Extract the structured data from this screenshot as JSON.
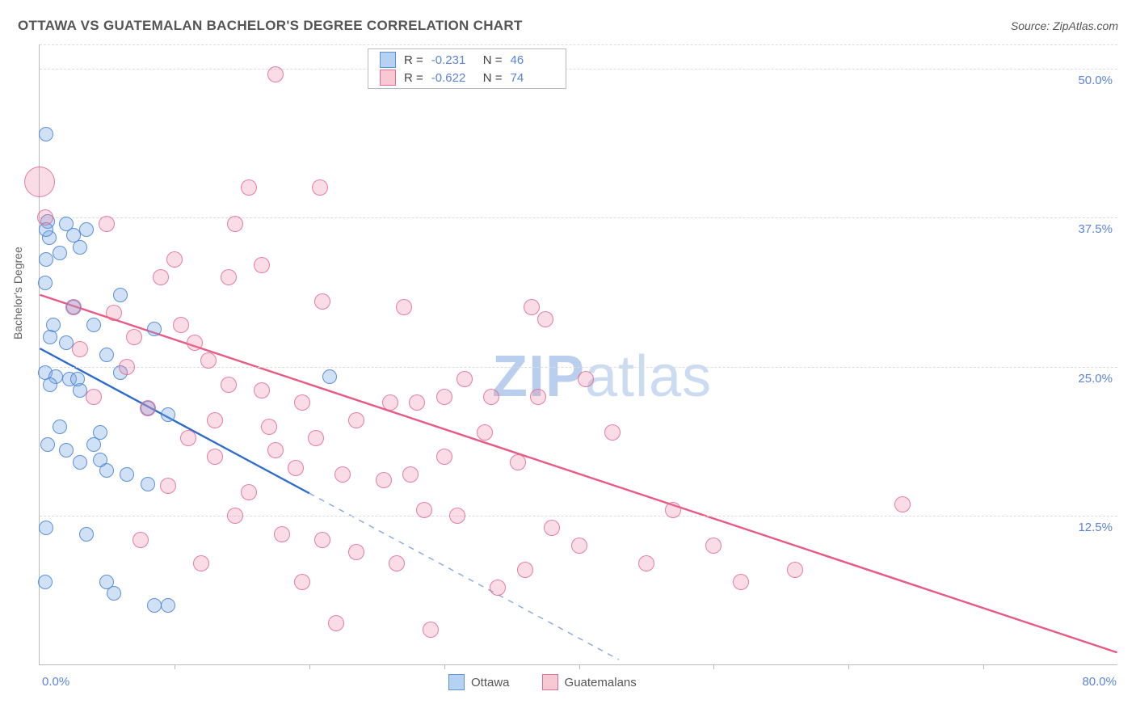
{
  "title": "OTTAWA VS GUATEMALAN BACHELOR'S DEGREE CORRELATION CHART",
  "source": "Source: ZipAtlas.com",
  "watermark_bold": "ZIP",
  "watermark_light": "atlas",
  "y_axis_label": "Bachelor's Degree",
  "chart": {
    "type": "scatter",
    "xlim": [
      0,
      80
    ],
    "ylim": [
      0,
      52
    ],
    "x_tick_step": 10,
    "x_label_min": "0.0%",
    "x_label_max": "80.0%",
    "y_gridlines": [
      12.5,
      25.0,
      37.5,
      50.0
    ],
    "y_labels": [
      "12.5%",
      "25.0%",
      "37.5%",
      "50.0%"
    ],
    "background_color": "#ffffff",
    "grid_color": "#dddddd",
    "axis_color": "#bbbbbb",
    "label_color": "#5b84d7",
    "series": [
      {
        "name": "Ottawa",
        "swatch_fill": "#b6d2f3",
        "swatch_stroke": "#5f91d6",
        "marker_fill": "rgba(120,170,230,0.35)",
        "marker_stroke": "rgba(70,130,210,0.85)",
        "marker_r": 8,
        "R": "-0.231",
        "N": "46",
        "trend": {
          "color": "#2e6bd0",
          "width": 2.4,
          "solid_to_x": 20,
          "x1": 0,
          "y1": 26.5,
          "x2": 43,
          "y2": 0.4
        },
        "points": [
          [
            0.5,
            44.5
          ],
          [
            0.6,
            37.2
          ],
          [
            0.7,
            35.8
          ],
          [
            0.5,
            36.5
          ],
          [
            2.0,
            37.0
          ],
          [
            2.5,
            36.0
          ],
          [
            3.5,
            36.5
          ],
          [
            0.5,
            34.0
          ],
          [
            0.4,
            32.0
          ],
          [
            2.5,
            30.0
          ],
          [
            1.0,
            28.5
          ],
          [
            0.8,
            27.5
          ],
          [
            2.0,
            27.0
          ],
          [
            4.0,
            28.5
          ],
          [
            6.0,
            31.0
          ],
          [
            8.5,
            28.2
          ],
          [
            0.4,
            24.5
          ],
          [
            1.2,
            24.2
          ],
          [
            2.2,
            24.0
          ],
          [
            0.8,
            23.5
          ],
          [
            3.0,
            23.0
          ],
          [
            8.0,
            21.5
          ],
          [
            9.5,
            21.0
          ],
          [
            4.5,
            19.5
          ],
          [
            1.5,
            20.0
          ],
          [
            0.6,
            18.5
          ],
          [
            2.0,
            18.0
          ],
          [
            3.0,
            17.0
          ],
          [
            4.5,
            17.2
          ],
          [
            5.0,
            16.3
          ],
          [
            6.5,
            16.0
          ],
          [
            8.0,
            15.2
          ],
          [
            0.5,
            11.5
          ],
          [
            3.5,
            11.0
          ],
          [
            0.4,
            7.0
          ],
          [
            5.0,
            7.0
          ],
          [
            5.5,
            6.0
          ],
          [
            8.5,
            5.0
          ],
          [
            9.5,
            5.0
          ],
          [
            1.5,
            34.5
          ],
          [
            3.0,
            35.0
          ],
          [
            5.0,
            26.0
          ],
          [
            4.0,
            18.5
          ],
          [
            6.0,
            24.5
          ],
          [
            2.8,
            24.0
          ],
          [
            21.5,
            24.2
          ]
        ]
      },
      {
        "name": "Guatemalans",
        "swatch_fill": "#f6c9d5",
        "swatch_stroke": "#e36f91",
        "marker_fill": "rgba(235,130,160,0.28)",
        "marker_stroke": "rgba(225,100,140,0.8)",
        "marker_r": 9,
        "R": "-0.622",
        "N": "74",
        "trend": {
          "color": "#e85a85",
          "width": 2.4,
          "solid_to_x": 80,
          "x1": 0,
          "y1": 31.0,
          "x2": 80,
          "y2": 1.0
        },
        "points": [
          [
            0.0,
            40.5,
            18
          ],
          [
            17.5,
            49.5
          ],
          [
            15.5,
            40.0
          ],
          [
            20.8,
            40.0
          ],
          [
            0.4,
            37.5
          ],
          [
            5.0,
            37.0
          ],
          [
            14.5,
            37.0
          ],
          [
            10.0,
            34.0
          ],
          [
            16.5,
            33.5
          ],
          [
            9.0,
            32.5
          ],
          [
            14.0,
            32.5
          ],
          [
            2.5,
            30.0
          ],
          [
            5.5,
            29.5
          ],
          [
            10.5,
            28.5
          ],
          [
            7.0,
            27.5
          ],
          [
            11.5,
            27.0
          ],
          [
            3.0,
            26.5
          ],
          [
            12.5,
            25.5
          ],
          [
            21.0,
            30.5
          ],
          [
            27.0,
            30.0
          ],
          [
            36.5,
            30.0
          ],
          [
            14.0,
            23.5
          ],
          [
            16.5,
            23.0
          ],
          [
            19.5,
            22.0
          ],
          [
            13.0,
            20.5
          ],
          [
            17.0,
            20.0
          ],
          [
            20.5,
            19.0
          ],
          [
            23.5,
            20.5
          ],
          [
            28.0,
            22.0
          ],
          [
            30.0,
            22.5
          ],
          [
            33.5,
            22.5
          ],
          [
            37.0,
            22.5
          ],
          [
            17.5,
            18.0
          ],
          [
            19.0,
            16.5
          ],
          [
            22.5,
            16.0
          ],
          [
            25.5,
            15.5
          ],
          [
            27.5,
            16.0
          ],
          [
            30.0,
            17.5
          ],
          [
            15.5,
            14.5
          ],
          [
            26.0,
            22.0
          ],
          [
            14.5,
            12.5
          ],
          [
            18.0,
            11.0
          ],
          [
            21.0,
            10.5
          ],
          [
            23.5,
            9.5
          ],
          [
            26.5,
            8.5
          ],
          [
            28.5,
            13.0
          ],
          [
            31.0,
            12.5
          ],
          [
            33.0,
            19.5
          ],
          [
            35.5,
            17.0
          ],
          [
            38.0,
            11.5
          ],
          [
            36.0,
            8.0
          ],
          [
            40.0,
            10.0
          ],
          [
            42.5,
            19.5
          ],
          [
            45.0,
            8.5
          ],
          [
            47.0,
            13.0
          ],
          [
            50.0,
            10.0
          ],
          [
            52.0,
            7.0
          ],
          [
            37.5,
            29.0
          ],
          [
            40.5,
            24.0
          ],
          [
            31.5,
            24.0
          ],
          [
            29.0,
            3.0
          ],
          [
            34.0,
            6.5
          ],
          [
            56.0,
            8.0
          ],
          [
            64.0,
            13.5
          ],
          [
            19.5,
            7.0
          ],
          [
            22.0,
            3.5
          ],
          [
            6.5,
            25.0
          ],
          [
            4.0,
            22.5
          ],
          [
            8.0,
            21.5
          ],
          [
            11.0,
            19.0
          ],
          [
            13.0,
            17.5
          ],
          [
            9.5,
            15.0
          ],
          [
            12.0,
            8.5
          ],
          [
            7.5,
            10.5
          ]
        ]
      }
    ]
  },
  "legend_top": {
    "r_label": "R =",
    "n_label": "N ="
  },
  "legend_bottom": [
    {
      "label": "Ottawa",
      "fill": "#b6d2f3",
      "stroke": "#5f91d6"
    },
    {
      "label": "Guatemalans",
      "fill": "#f6c9d5",
      "stroke": "#e36f91"
    }
  ]
}
